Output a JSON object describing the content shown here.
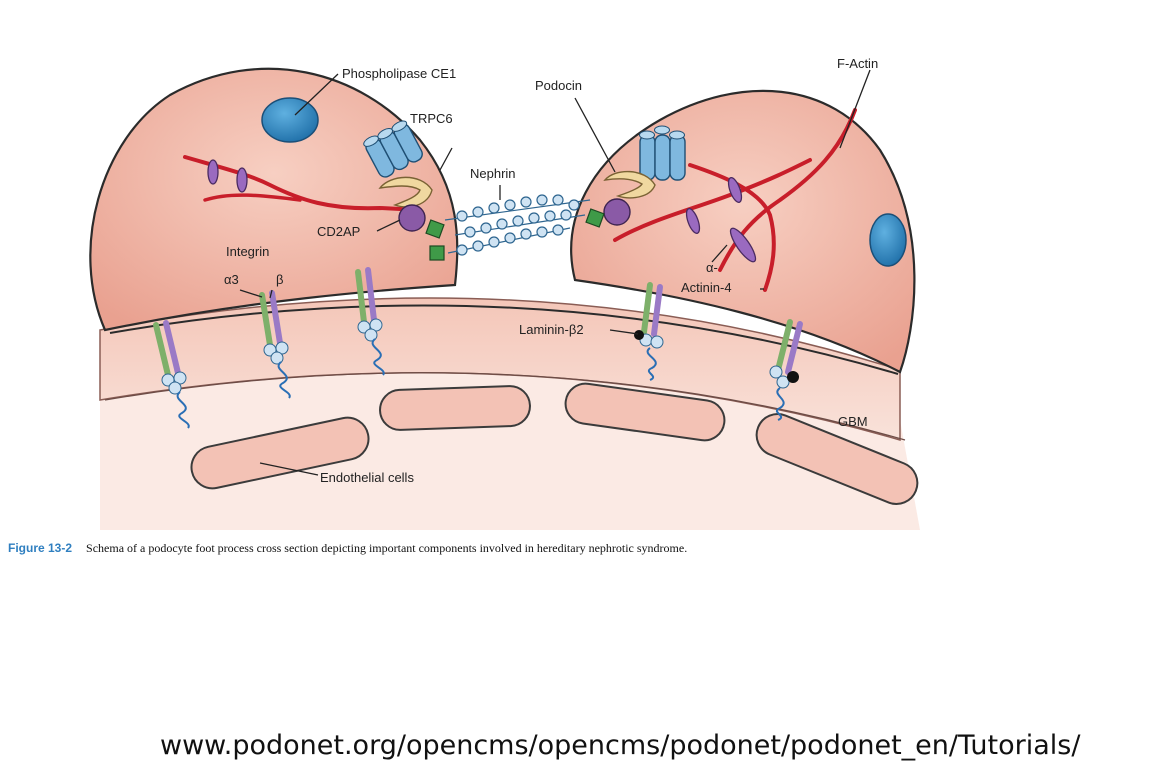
{
  "labels": {
    "phospholipase": "Phospholipase CE1",
    "trpc6": "TRPC6",
    "podocin": "Podocin",
    "factin": "F-Actin",
    "nephrin": "Nephrin",
    "cd2ap": "CD2AP",
    "integrin": "Integrin",
    "alpha3": "α3",
    "beta": "β",
    "alpha_actinin_1": "α-",
    "alpha_actinin_2": "Actinin-4",
    "laminin": "Laminin-β2",
    "gbm": "GBM",
    "endothelial": "Endothelial cells"
  },
  "caption": {
    "figure": "Figure 13-2",
    "text": "Schema of a podocyte foot process cross section depicting important components involved in hereditary nephrotic syndrome."
  },
  "url": "www.podonet.org/opencms/opencms/podonet/podonet_en/Tutorials/",
  "colors": {
    "cell": "#f2b6a6",
    "membrane": "#f7d0c4",
    "actin": "#c81e2a",
    "nucleus": "#2a86c4",
    "channel": "#7fb8df",
    "bead": "#cfe3f3",
    "cd2ap": "#8a5aa6",
    "podocin": "#f0d8a0",
    "anchor": "#3f9a48"
  }
}
